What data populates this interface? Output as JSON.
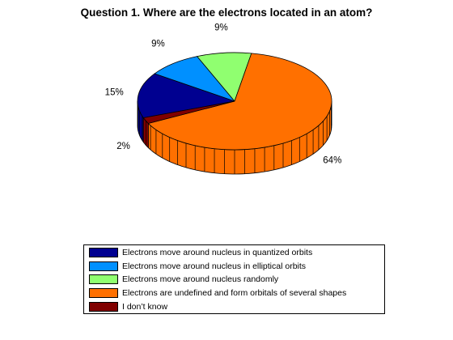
{
  "chart_data": {
    "type": "pie",
    "style": "3d",
    "title": "Question 1. Where are the electrons located in an atom?",
    "slices": [
      {
        "label": "Electrons move around nucleus in quantized orbits",
        "value": 15,
        "value_label": "15%",
        "color": "#000090"
      },
      {
        "label": "Electrons move around nucleus in elliptical orbits",
        "value": 9,
        "value_label": "9%",
        "color": "#0090FF"
      },
      {
        "label": "Electrons move around nucleus randomly",
        "value": 9,
        "value_label": "9%",
        "color": "#90FF70"
      },
      {
        "label": "Electrons are undefined and form orbitals of several shapes",
        "value": 64,
        "value_label": "64%",
        "color": "#FF7000"
      },
      {
        "label": "I don’t know",
        "value": 2,
        "value_label": "2%",
        "color": "#800000"
      }
    ],
    "legend": "bottom-center"
  }
}
